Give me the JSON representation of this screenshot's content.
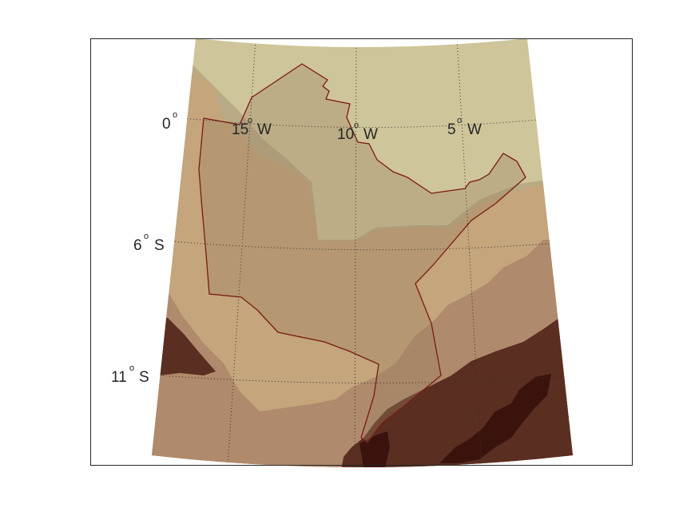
{
  "map": {
    "projection": "conic",
    "frame": true,
    "graticule": {
      "style": "dotted",
      "meridian_labels": [
        {
          "deg": "15",
          "dir": "W"
        },
        {
          "deg": "10",
          "dir": "W"
        },
        {
          "deg": "5",
          "dir": "W"
        }
      ],
      "parallel_labels": [
        {
          "deg": "0",
          "dir": ""
        },
        {
          "deg": "6",
          "dir": "S"
        },
        {
          "deg": "11",
          "dir": "S"
        }
      ]
    },
    "colors": {
      "level_1": "#cfc59a",
      "level_2": "#b8aa86",
      "level_3": "#c4a57c",
      "level_4": "#b08a6c",
      "level_5": "#5a2e20",
      "level_6": "#3a130d",
      "outline": "#7a1a12",
      "overlay": "#9c8062"
    }
  }
}
